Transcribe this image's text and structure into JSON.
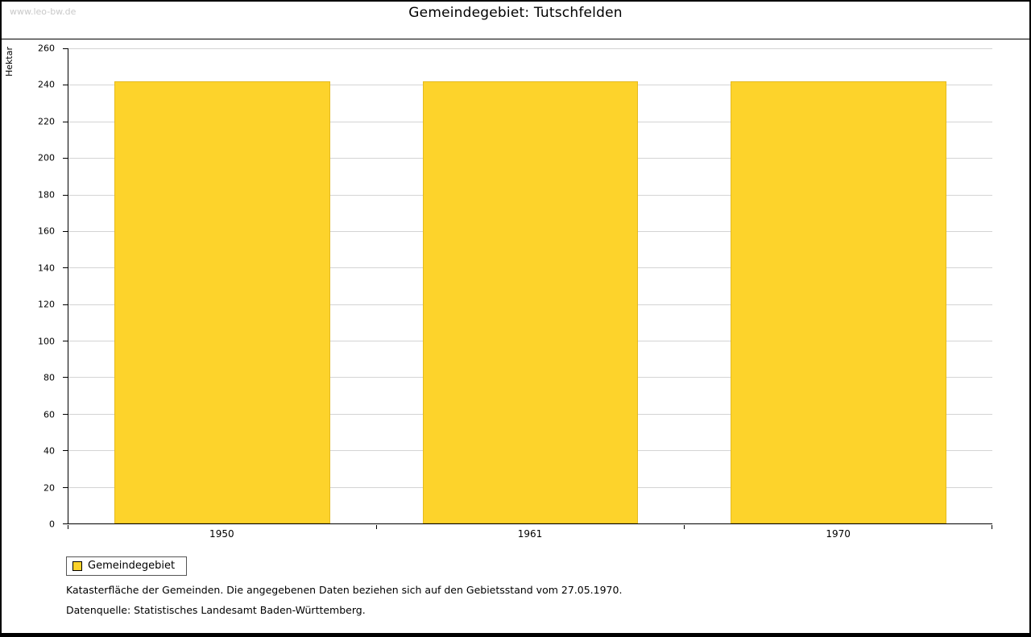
{
  "watermark": "www.leo-bw.de",
  "title": "Gemeindegebiet: Tutschfelden",
  "chart_data": {
    "type": "bar",
    "title": "Gemeindegebiet: Tutschfelden",
    "xlabel": "",
    "ylabel": "Hektar",
    "categories": [
      "1950",
      "1961",
      "1970"
    ],
    "series": [
      {
        "name": "Gemeindegebiet",
        "values": [
          242,
          242,
          242
        ]
      }
    ],
    "ylim": [
      0,
      260
    ],
    "ytick_step": 20,
    "grid": true,
    "bar_color": "#fdd32b",
    "bar_border_color": "#e4ba1f",
    "legend_position": "bottom-left"
  },
  "legend": {
    "items": [
      {
        "label": "Gemeindegebiet",
        "color": "#fdd32b"
      }
    ]
  },
  "footnotes": [
    "Katasterfläche der Gemeinden. Die angegebenen Daten beziehen sich auf den Gebietsstand vom 27.05.1970.",
    "Datenquelle: Statistisches Landesamt Baden-Württemberg."
  ]
}
